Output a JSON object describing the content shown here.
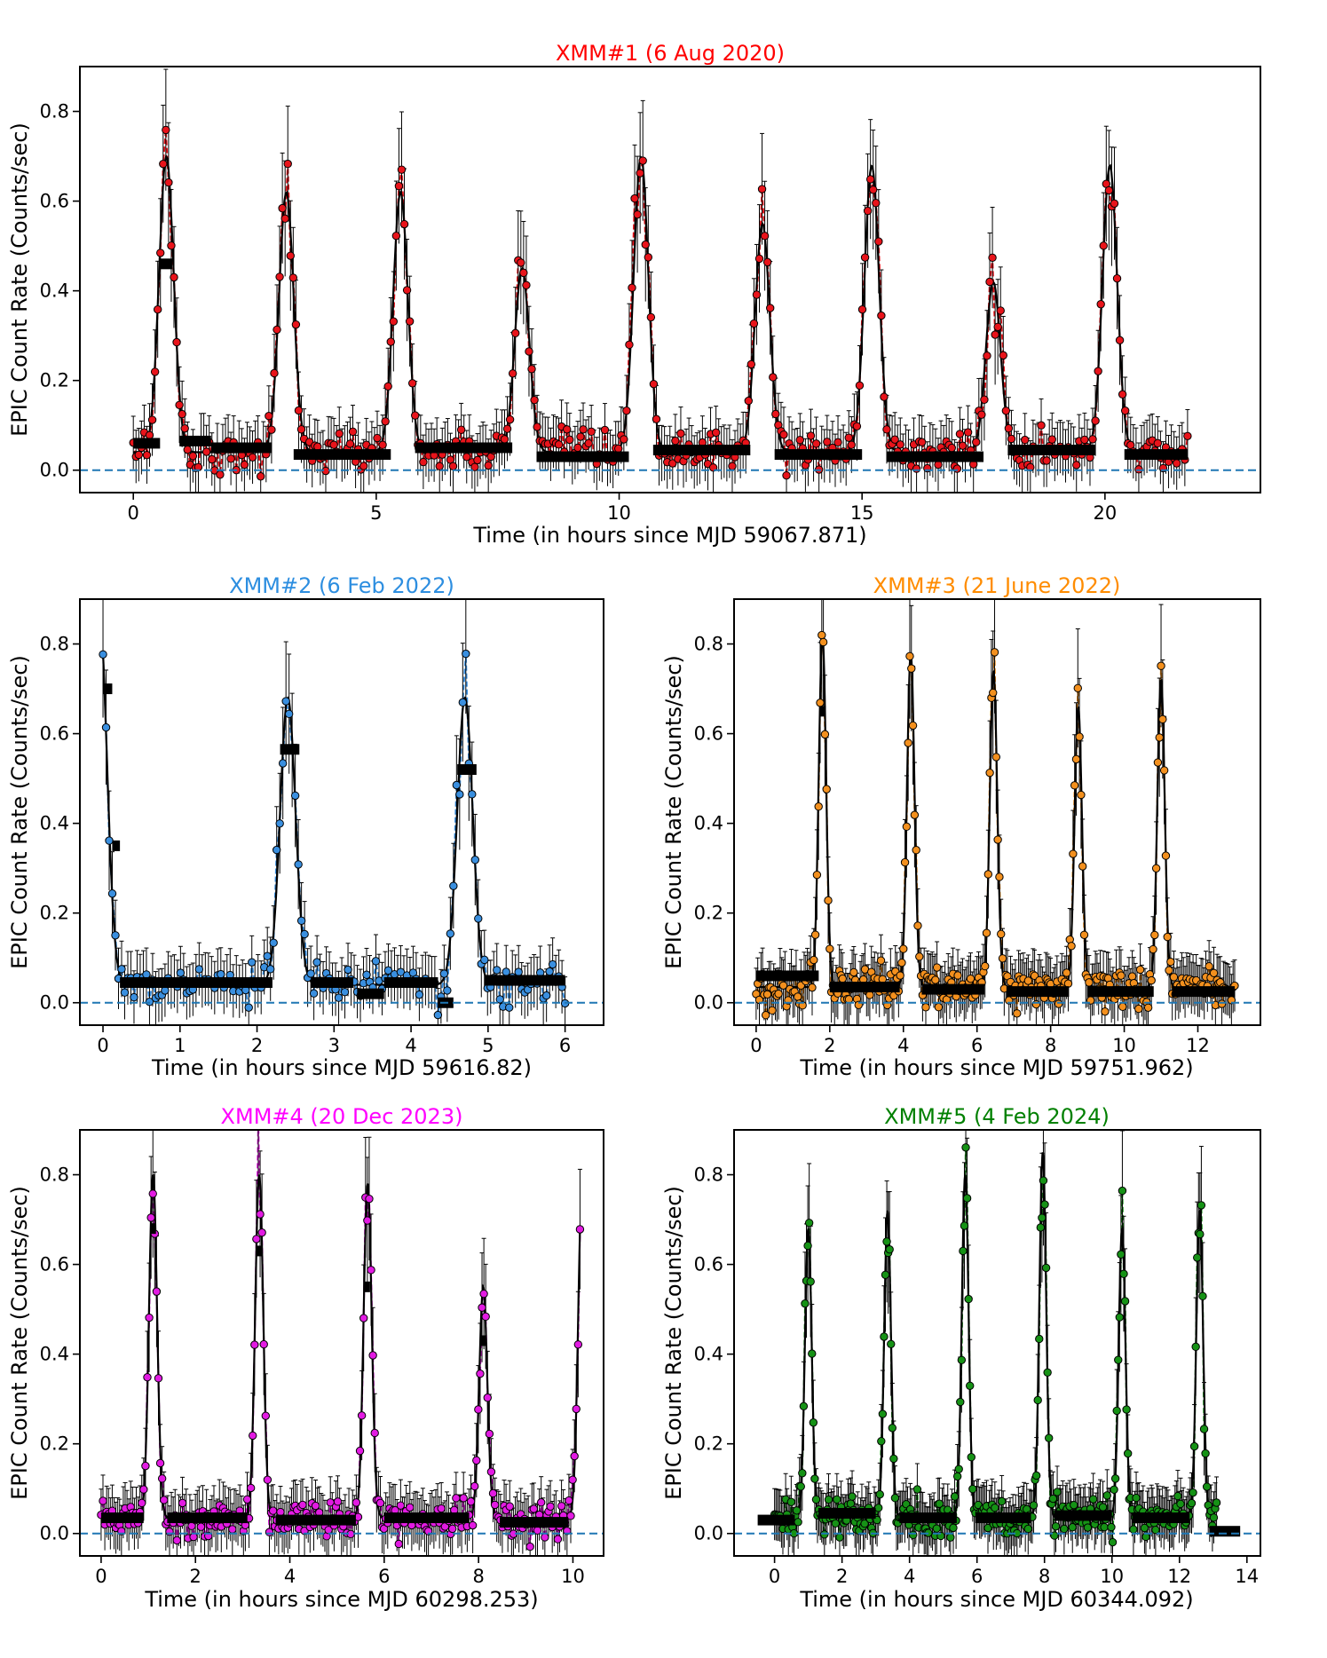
{
  "chart_data": [
    {
      "id": "xmm1",
      "type": "scatter",
      "title": "XMM#1 (6 Aug 2020)",
      "title_color": "#ff0000",
      "series_color": "#e8141b",
      "xlabel": "Time (in hours since MJD 59067.871)",
      "ylabel": "EPIC Count Rate (Counts/sec)",
      "xlim": [
        -1.1,
        23.2
      ],
      "ylim": [
        -0.05,
        0.9
      ],
      "xticks": [
        0,
        5,
        10,
        15,
        20
      ],
      "xtick_labels": [
        "0",
        "5",
        "10",
        "15",
        "20"
      ],
      "yticks": [
        0.0,
        0.2,
        0.4,
        0.6,
        0.8
      ],
      "ytick_labels": [
        "0.0",
        "0.2",
        "0.4",
        "0.6",
        "0.8"
      ],
      "zero_line": true,
      "t_start": 0.0,
      "t_end": 21.7,
      "baseline": 0.04,
      "peaks": [
        {
          "t": 0.68,
          "amp": 0.7
        },
        {
          "t": 3.15,
          "amp": 0.62
        },
        {
          "t": 5.5,
          "amp": 0.62
        },
        {
          "t": 8.0,
          "amp": 0.45
        },
        {
          "t": 10.45,
          "amp": 0.7
        },
        {
          "t": 12.95,
          "amp": 0.55
        },
        {
          "t": 15.2,
          "amp": 0.68
        },
        {
          "t": 17.7,
          "amp": 0.42
        },
        {
          "t": 20.1,
          "amp": 0.68
        }
      ],
      "peak_width_h": 0.15,
      "n_points": 390,
      "binned": [
        {
          "x0": 0.0,
          "x1": 0.55,
          "y": 0.06
        },
        {
          "x0": 0.55,
          "x1": 0.8,
          "y": 0.46
        },
        {
          "x0": 0.95,
          "x1": 1.6,
          "y": 0.065
        },
        {
          "x0": 1.6,
          "x1": 2.85,
          "y": 0.05
        },
        {
          "x0": 3.3,
          "x1": 5.3,
          "y": 0.035
        },
        {
          "x0": 5.8,
          "x1": 7.8,
          "y": 0.05
        },
        {
          "x0": 8.3,
          "x1": 10.2,
          "y": 0.03
        },
        {
          "x0": 10.7,
          "x1": 12.7,
          "y": 0.045
        },
        {
          "x0": 13.2,
          "x1": 15.0,
          "y": 0.035
        },
        {
          "x0": 15.5,
          "x1": 17.5,
          "y": 0.03
        },
        {
          "x0": 18.0,
          "x1": 19.8,
          "y": 0.045
        },
        {
          "x0": 20.4,
          "x1": 21.7,
          "y": 0.035
        }
      ]
    },
    {
      "id": "xmm2",
      "type": "scatter",
      "title": "XMM#2 (6 Feb 2022)",
      "title_color": "#2d8ee0",
      "series_color": "#3a8fdf",
      "xlabel": "Time (in hours since MJD 59616.82)",
      "ylabel": "EPIC Count Rate (Counts/sec)",
      "xlim": [
        -0.3,
        6.5
      ],
      "ylim": [
        -0.05,
        0.9
      ],
      "xticks": [
        0,
        1,
        2,
        3,
        4,
        5,
        6
      ],
      "xtick_labels": [
        "0",
        "1",
        "2",
        "3",
        "4",
        "5",
        "6"
      ],
      "yticks": [
        0.0,
        0.2,
        0.4,
        0.6,
        0.8
      ],
      "ytick_labels": [
        "0.0",
        "0.2",
        "0.4",
        "0.6",
        "0.8"
      ],
      "zero_line": true,
      "t_start": 0.0,
      "t_end": 6.0,
      "baseline": 0.04,
      "peaks": [
        {
          "t": -0.05,
          "amp": 0.88
        },
        {
          "t": 2.4,
          "amp": 0.68
        },
        {
          "t": 4.7,
          "amp": 0.68
        }
      ],
      "peak_width_h": 0.1,
      "n_points": 150,
      "binned": [
        {
          "x0": 0.0,
          "x1": 0.12,
          "y": 0.7
        },
        {
          "x0": 0.12,
          "x1": 0.22,
          "y": 0.35
        },
        {
          "x0": 0.22,
          "x1": 2.2,
          "y": 0.045
        },
        {
          "x0": 2.3,
          "x1": 2.55,
          "y": 0.565
        },
        {
          "x0": 2.7,
          "x1": 3.25,
          "y": 0.045
        },
        {
          "x0": 3.3,
          "x1": 3.65,
          "y": 0.02
        },
        {
          "x0": 3.65,
          "x1": 4.35,
          "y": 0.045
        },
        {
          "x0": 4.35,
          "x1": 4.55,
          "y": 0.0
        },
        {
          "x0": 4.6,
          "x1": 4.85,
          "y": 0.52
        },
        {
          "x0": 4.95,
          "x1": 6.0,
          "y": 0.05
        }
      ]
    },
    {
      "id": "xmm3",
      "type": "scatter",
      "title": "XMM#3 (21 June 2022)",
      "title_color": "#ff8c00",
      "series_color": "#f3901e",
      "xlabel": "Time (in hours since MJD 59751.962)",
      "ylabel": "EPIC Count Rate (Counts/sec)",
      "xlim": [
        -0.6,
        13.7
      ],
      "ylim": [
        -0.05,
        0.9
      ],
      "xticks": [
        0,
        2,
        4,
        6,
        8,
        10,
        12
      ],
      "xtick_labels": [
        "0",
        "2",
        "4",
        "6",
        "8",
        "10",
        "12"
      ],
      "yticks": [
        0.0,
        0.2,
        0.4,
        0.6,
        0.8
      ],
      "ytick_labels": [
        "0.0",
        "0.2",
        "0.4",
        "0.6",
        "0.8"
      ],
      "zero_line": true,
      "t_start": 0.0,
      "t_end": 13.0,
      "baseline": 0.035,
      "peaks": [
        {
          "t": 1.8,
          "amp": 0.82
        },
        {
          "t": 4.2,
          "amp": 0.78
        },
        {
          "t": 6.45,
          "amp": 0.74
        },
        {
          "t": 8.75,
          "amp": 0.66
        },
        {
          "t": 11.0,
          "amp": 0.72
        }
      ],
      "peak_width_h": 0.1,
      "n_points": 300,
      "binned": [
        {
          "x0": 0.0,
          "x1": 1.7,
          "y": 0.06
        },
        {
          "x0": 1.75,
          "x1": 1.85,
          "y": 0.65
        },
        {
          "x0": 2.0,
          "x1": 3.9,
          "y": 0.035
        },
        {
          "x0": 4.5,
          "x1": 6.2,
          "y": 0.03
        },
        {
          "x0": 6.8,
          "x1": 8.5,
          "y": 0.025
        },
        {
          "x0": 9.0,
          "x1": 10.8,
          "y": 0.025
        },
        {
          "x0": 11.3,
          "x1": 13.0,
          "y": 0.025
        }
      ]
    },
    {
      "id": "xmm4",
      "type": "scatter",
      "title": "XMM#4 (20 Dec 2023)",
      "title_color": "#ff00ff",
      "series_color": "#e21be2",
      "xlabel": "Time (in hours since MJD 60298.253)",
      "ylabel": "EPIC Count Rate (Counts/sec)",
      "xlim": [
        -0.45,
        10.65
      ],
      "ylim": [
        -0.05,
        0.9
      ],
      "xticks": [
        0,
        2,
        4,
        6,
        8,
        10
      ],
      "xtick_labels": [
        "0",
        "2",
        "4",
        "6",
        "8",
        "10"
      ],
      "yticks": [
        0.0,
        0.2,
        0.4,
        0.6,
        0.8
      ],
      "ytick_labels": [
        "0.0",
        "0.2",
        "0.4",
        "0.6",
        "0.8"
      ],
      "zero_line": true,
      "t_start": 0.0,
      "t_end": 10.15,
      "baseline": 0.035,
      "peaks": [
        {
          "t": 1.1,
          "amp": 0.8
        },
        {
          "t": 3.35,
          "amp": 0.8
        },
        {
          "t": 5.65,
          "amp": 0.78
        },
        {
          "t": 8.1,
          "amp": 0.55
        },
        {
          "t": 10.2,
          "amp": 0.8
        }
      ],
      "peak_width_h": 0.085,
      "n_points": 260,
      "binned": [
        {
          "x0": 0.0,
          "x1": 0.9,
          "y": 0.035
        },
        {
          "x0": 1.05,
          "x1": 1.15,
          "y": 0.68
        },
        {
          "x0": 1.4,
          "x1": 3.1,
          "y": 0.035
        },
        {
          "x0": 3.3,
          "x1": 3.42,
          "y": 0.63
        },
        {
          "x0": 3.7,
          "x1": 5.4,
          "y": 0.03
        },
        {
          "x0": 5.58,
          "x1": 5.7,
          "y": 0.55
        },
        {
          "x0": 6.0,
          "x1": 7.8,
          "y": 0.035
        },
        {
          "x0": 8.05,
          "x1": 8.15,
          "y": 0.43
        },
        {
          "x0": 8.45,
          "x1": 9.9,
          "y": 0.025
        }
      ]
    },
    {
      "id": "xmm5",
      "type": "scatter",
      "title": "XMM#5 (4 Feb 2024)",
      "title_color": "#008000",
      "series_color": "#169216",
      "xlabel": "Time (in hours since MJD 60344.092)",
      "ylabel": "EPIC Count Rate (Counts/sec)",
      "xlim": [
        -1.2,
        14.4
      ],
      "ylim": [
        -0.05,
        0.9
      ],
      "xticks": [
        0,
        2,
        4,
        6,
        8,
        10,
        12,
        14
      ],
      "xtick_labels": [
        "0",
        "2",
        "4",
        "6",
        "8",
        "10",
        "12",
        "14"
      ],
      "yticks": [
        0.0,
        0.2,
        0.4,
        0.6,
        0.8
      ],
      "ytick_labels": [
        "0.0",
        "0.2",
        "0.4",
        "0.6",
        "0.8"
      ],
      "zero_line": true,
      "t_start": 0.0,
      "t_end": 13.1,
      "baseline": 0.035,
      "peaks": [
        {
          "t": 1.0,
          "amp": 0.68
        },
        {
          "t": 3.35,
          "amp": 0.72
        },
        {
          "t": 5.65,
          "amp": 0.8
        },
        {
          "t": 7.95,
          "amp": 0.85
        },
        {
          "t": 10.3,
          "amp": 0.68
        },
        {
          "t": 12.6,
          "amp": 0.72
        }
      ],
      "peak_width_h": 0.1,
      "n_points": 320,
      "binned": [
        {
          "x0": -0.5,
          "x1": 0.6,
          "y": 0.03
        },
        {
          "x0": 1.3,
          "x1": 3.0,
          "y": 0.045
        },
        {
          "x0": 3.7,
          "x1": 5.4,
          "y": 0.035
        },
        {
          "x0": 5.95,
          "x1": 7.6,
          "y": 0.035
        },
        {
          "x0": 8.3,
          "x1": 10.0,
          "y": 0.04
        },
        {
          "x0": 10.6,
          "x1": 12.3,
          "y": 0.035
        },
        {
          "x0": 12.9,
          "x1": 13.8,
          "y": 0.005
        }
      ]
    }
  ]
}
